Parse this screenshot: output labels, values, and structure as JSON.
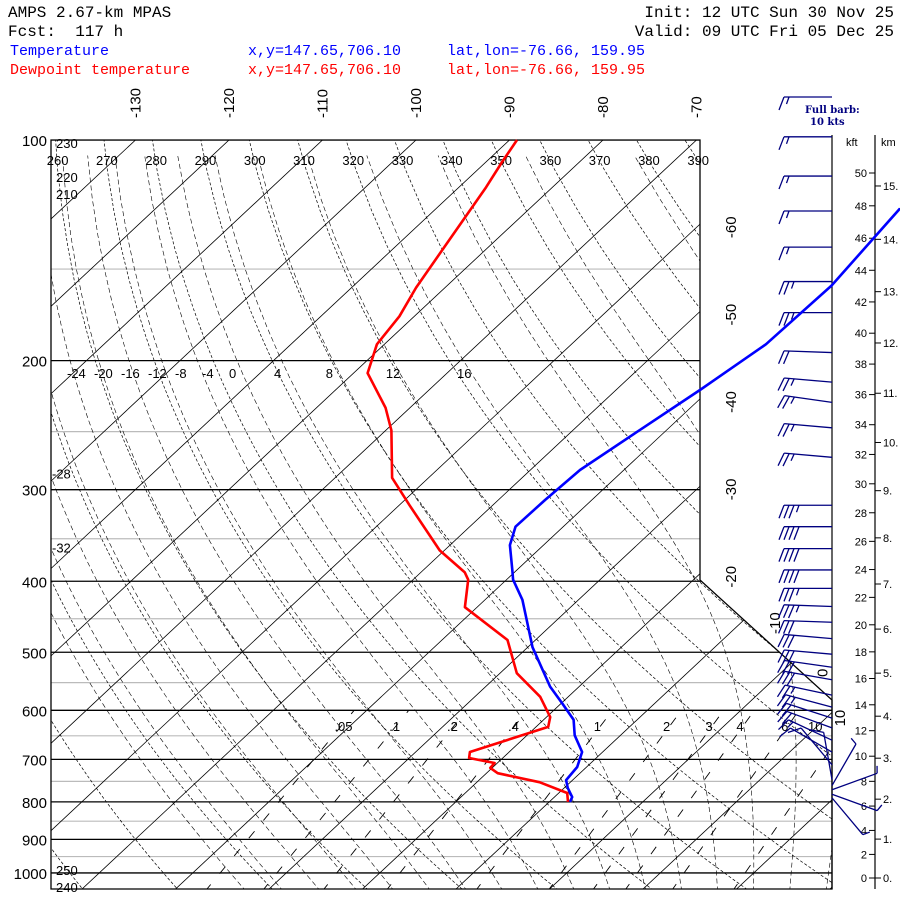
{
  "header": {
    "model": "AMPS 2.67-km MPAS",
    "forecast": "Fcst:  117 h",
    "init": "Init: 12 UTC Sun 30 Nov 25",
    "valid": "Valid: 09 UTC Fri 05 Dec 25"
  },
  "legend": [
    {
      "name": "Temperature",
      "xy": "x,y=147.65,706.10",
      "latlon": "lat,lon=-76.66, 159.95",
      "color": "#0000ff"
    },
    {
      "name": "Dewpoint temperature",
      "xy": "x,y=147.65,706.10",
      "latlon": "lat,lon=-76.66, 159.95",
      "color": "#ff0000"
    }
  ],
  "chart_data": {
    "type": "skew-t",
    "pressure_levels": [
      100,
      200,
      300,
      400,
      500,
      600,
      700,
      800,
      900,
      1000
    ],
    "minor_pressure_levels": [
      150,
      250,
      350,
      450,
      550,
      650,
      750,
      850,
      950
    ],
    "isotherm_labels_top": [
      -130,
      -120,
      -110,
      -100,
      -90,
      -80,
      -70
    ],
    "isotherm_labels_right": [
      -60,
      -50,
      -40,
      -30,
      -20,
      -10,
      0,
      10
    ],
    "dry_adiabat_labels_top": [
      260,
      270,
      280,
      290,
      300,
      310,
      320,
      330,
      340,
      350,
      360,
      370,
      380,
      390
    ],
    "dry_adiabat_labels_left": [
      250,
      240,
      230,
      220,
      210
    ],
    "moist_adiabat_labels": [
      -24,
      -20,
      -16,
      -12,
      -8,
      -4,
      0,
      4,
      8,
      12,
      16
    ],
    "moist_adiabat_labels_left": [
      -28,
      -32
    ],
    "mixing_ratio_labels": [
      ".05",
      ".1",
      ".2",
      ".4",
      "1",
      "2",
      "3",
      "4",
      "6",
      "10"
    ],
    "mixing_ratio_values": [
      0.05,
      0.1,
      0.2,
      0.4,
      1,
      2,
      3,
      4,
      6,
      10
    ],
    "series": [
      {
        "name": "Temperature",
        "color": "#0000ff",
        "pressure_hpa": [
          124,
          158,
          190,
          219,
          249,
          282,
          310,
          337,
          357,
          386,
          398,
          424,
          492,
          557,
          587,
          618,
          649,
          684,
          717,
          747,
          766,
          788,
          800
        ],
        "temp_c": [
          -40.4,
          -38.9,
          -39.2,
          -41.0,
          -42.9,
          -44.7,
          -45.0,
          -45.1,
          -43.6,
          -40.5,
          -39.3,
          -36.0,
          -29.5,
          -23.1,
          -19.9,
          -16.8,
          -14.9,
          -12.2,
          -11.0,
          -10.7,
          -9.6,
          -8.1,
          -7.8
        ]
      },
      {
        "name": "Dewpoint temperature",
        "color": "#ff0000",
        "pressure_hpa": [
          100,
          107,
          116,
          138,
          159,
          174,
          190,
          208,
          232,
          249,
          289,
          315,
          363,
          389,
          398,
          434,
          481,
          534,
          575,
          613,
          632,
          684,
          697,
          708,
          719,
          731,
          752,
          778,
          800
        ],
        "temp_c": [
          -89.2,
          -88.3,
          -87.1,
          -84.9,
          -83.1,
          -81.6,
          -80.8,
          -78.5,
          -72.6,
          -69.4,
          -63.9,
          -58.9,
          -50.5,
          -45.3,
          -44.1,
          -41.3,
          -33.0,
          -28.2,
          -23.0,
          -19.6,
          -18.7,
          -24.2,
          -23.6,
          -20.3,
          -20.2,
          -18.8,
          -13.3,
          -9.1,
          -8.0
        ]
      }
    ],
    "winds": [
      {
        "p": 99,
        "dir": 270,
        "kts": 15
      },
      {
        "p": 112,
        "dir": 270,
        "kts": 15
      },
      {
        "p": 125,
        "dir": 270,
        "kts": 15
      },
      {
        "p": 140,
        "dir": 270,
        "kts": 15
      },
      {
        "p": 156,
        "dir": 270,
        "kts": 25
      },
      {
        "p": 172,
        "dir": 270,
        "kts": 25
      },
      {
        "p": 195,
        "dir": 272,
        "kts": 20
      },
      {
        "p": 214,
        "dir": 275,
        "kts": 25
      },
      {
        "p": 228,
        "dir": 278,
        "kts": 25
      },
      {
        "p": 247,
        "dir": 275,
        "kts": 25
      },
      {
        "p": 271,
        "dir": 275,
        "kts": 25
      },
      {
        "p": 315,
        "dir": 270,
        "kts": 35
      },
      {
        "p": 337,
        "dir": 270,
        "kts": 40
      },
      {
        "p": 361,
        "dir": 270,
        "kts": 40
      },
      {
        "p": 386,
        "dir": 270,
        "kts": 40
      },
      {
        "p": 409,
        "dir": 270,
        "kts": 35
      },
      {
        "p": 433,
        "dir": 272,
        "kts": 35
      },
      {
        "p": 455,
        "dir": 272,
        "kts": 30
      },
      {
        "p": 479,
        "dir": 275,
        "kts": 30
      },
      {
        "p": 503,
        "dir": 275,
        "kts": 30
      },
      {
        "p": 524,
        "dir": 278,
        "kts": 30
      },
      {
        "p": 545,
        "dir": 280,
        "kts": 30
      },
      {
        "p": 572,
        "dir": 282,
        "kts": 25
      },
      {
        "p": 594,
        "dir": 285,
        "kts": 25
      },
      {
        "p": 615,
        "dir": 288,
        "kts": 20
      },
      {
        "p": 634,
        "dir": 290,
        "kts": 20
      },
      {
        "p": 659,
        "dir": 295,
        "kts": 15
      },
      {
        "p": 684,
        "dir": 300,
        "kts": 10
      },
      {
        "p": 712,
        "dir": 320,
        "kts": 10
      },
      {
        "p": 746,
        "dir": 350,
        "kts": 10
      },
      {
        "p": 760,
        "dir": 30,
        "kts": 5
      },
      {
        "p": 770,
        "dir": 70,
        "kts": 5
      },
      {
        "p": 781,
        "dir": 110,
        "kts": 5
      },
      {
        "p": 790,
        "dir": 140,
        "kts": 5
      }
    ],
    "barb_legend": {
      "line1": "Full barb:",
      "line2": "10 kts"
    },
    "height_axis": {
      "kft_label": "kft",
      "km_label": "km",
      "kft_ticks": [
        0,
        2,
        4,
        6,
        8,
        10,
        12,
        14,
        16,
        18,
        20,
        22,
        24,
        26,
        28,
        30,
        32,
        34,
        36,
        38,
        40,
        42,
        44,
        46,
        48,
        50
      ],
      "km_ticks": [
        0,
        1,
        2,
        3,
        4,
        5,
        6,
        7,
        8,
        9,
        10,
        11,
        12,
        13,
        14,
        15
      ],
      "km_tick_labels": [
        "0.",
        "1.",
        "2.",
        "3.",
        "4.",
        "5.",
        "6.",
        "7.",
        "8.",
        "9.",
        "10.",
        "11.",
        "12.",
        "13.",
        "14.",
        "15."
      ]
    }
  }
}
